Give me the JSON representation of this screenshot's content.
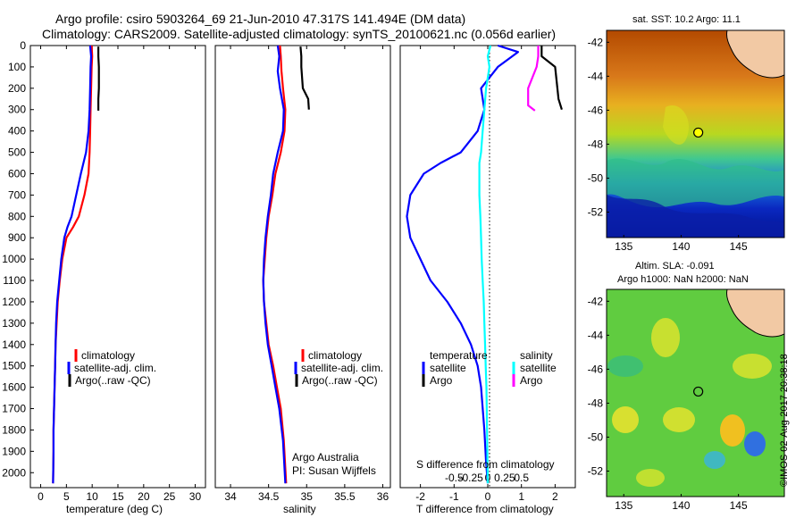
{
  "title": {
    "line1": "Argo profile: csiro 5903264_69 21-Jun-2010 47.317S 141.494E (DM data)",
    "line2": "Climatology: CARS2009. Satellite-adjusted climatology: synTS_20100621.nc (0.056d earlier)"
  },
  "colors": {
    "climatology": "#ff0000",
    "satellite": "#0000ff",
    "argo": "#000000",
    "sal_satellite": "#00ffff",
    "sal_argo": "#ff00ff"
  },
  "chart_data": [
    {
      "type": "line",
      "name": "temperature-panel",
      "xlabel": "temperature (deg C)",
      "ylabel": "",
      "xlim": [
        -2,
        32
      ],
      "ylim": [
        0,
        2070
      ],
      "y_inverted": true,
      "xticks": [
        "0",
        "5",
        "10",
        "15",
        "20",
        "25",
        "30"
      ],
      "yticks": [
        "0",
        "100",
        "200",
        "300",
        "400",
        "500",
        "600",
        "700",
        "800",
        "900",
        "1000",
        "1100",
        "1200",
        "1300",
        "1400",
        "1500",
        "1600",
        "1700",
        "1800",
        "1900",
        "2000"
      ],
      "legend": [
        "climatology",
        "satellite-adj. clim.",
        "Argo(..raw -QC)"
      ],
      "series": [
        {
          "name": "climatology",
          "color": "#ff0000",
          "x": [
            9.9,
            10.0,
            9.9,
            9.8,
            9.7,
            9.6,
            9.5,
            9.3,
            8.5,
            7.4,
            6.3,
            5.0,
            4.2,
            3.7,
            3.3,
            3.1,
            2.9,
            2.8,
            2.7,
            2.6,
            2.5,
            2.5,
            2.4
          ],
          "y": [
            0,
            50,
            100,
            200,
            300,
            400,
            500,
            600,
            700,
            800,
            850,
            900,
            1000,
            1100,
            1200,
            1300,
            1400,
            1500,
            1600,
            1700,
            1800,
            1900,
            2050
          ]
        },
        {
          "name": "satellite-adj. clim.",
          "color": "#0000ff",
          "x": [
            9.6,
            9.8,
            9.7,
            9.6,
            9.5,
            9.3,
            8.8,
            7.8,
            6.9,
            6.0,
            5.2,
            4.6,
            4.0,
            3.6,
            3.2,
            3.0,
            2.9,
            2.8,
            2.7,
            2.6,
            2.5,
            2.5,
            2.4
          ],
          "y": [
            0,
            50,
            100,
            200,
            300,
            400,
            500,
            600,
            700,
            800,
            850,
            900,
            1000,
            1100,
            1200,
            1300,
            1400,
            1500,
            1600,
            1700,
            1800,
            1900,
            2050
          ]
        },
        {
          "name": "Argo(..raw -QC)",
          "color": "#000000",
          "x": [
            11.2,
            11.2,
            11.3,
            11.3,
            11.2,
            11.2
          ],
          "y": [
            5,
            50,
            100,
            200,
            250,
            305
          ]
        }
      ]
    },
    {
      "type": "line",
      "name": "salinity-panel",
      "xlabel": "salinity",
      "ylabel": "",
      "xlim": [
        33.8,
        36.1
      ],
      "ylim": [
        0,
        2070
      ],
      "y_inverted": true,
      "xticks": [
        "34",
        "34.5",
        "35",
        "35.5",
        "36"
      ],
      "legend": [
        "climatology",
        "satellite-adj. clim.",
        "Argo(..raw -QC)"
      ],
      "annotations": [
        "Argo Australia",
        "PI: Susan Wijffels"
      ],
      "series": [
        {
          "name": "climatology",
          "color": "#ff0000",
          "x": [
            34.65,
            34.66,
            34.67,
            34.69,
            34.72,
            34.71,
            34.66,
            34.59,
            34.55,
            34.5,
            34.47,
            34.45,
            34.43,
            34.44,
            34.47,
            34.5,
            34.56,
            34.61,
            34.66,
            34.7,
            34.73
          ],
          "y": [
            0,
            50,
            120,
            200,
            300,
            400,
            500,
            600,
            700,
            800,
            900,
            1000,
            1100,
            1200,
            1300,
            1400,
            1500,
            1600,
            1700,
            1850,
            2050
          ]
        },
        {
          "name": "satellite-adj. clim.",
          "color": "#0000ff",
          "x": [
            34.62,
            34.64,
            34.62,
            34.65,
            34.7,
            34.69,
            34.62,
            34.56,
            34.53,
            34.49,
            34.46,
            34.44,
            34.43,
            34.44,
            34.46,
            34.49,
            34.54,
            34.59,
            34.64,
            34.69,
            34.72
          ],
          "y": [
            0,
            50,
            120,
            200,
            300,
            400,
            500,
            600,
            700,
            800,
            900,
            1000,
            1100,
            1200,
            1300,
            1400,
            1500,
            1600,
            1700,
            1850,
            2050
          ]
        },
        {
          "name": "Argo(..raw -QC)",
          "color": "#000000",
          "x": [
            34.92,
            34.93,
            34.93,
            34.95,
            35.02,
            35.03
          ],
          "y": [
            5,
            50,
            100,
            200,
            250,
            300
          ]
        }
      ]
    },
    {
      "type": "line",
      "name": "difference-panel",
      "xlabel": "T difference from climatology",
      "xlabel_top": "S difference from climatology",
      "xlim": [
        -2.6,
        2.6
      ],
      "ylim": [
        0,
        2070
      ],
      "y_inverted": true,
      "xticks": [
        "-2",
        "-1",
        "0",
        "1",
        "2"
      ],
      "xticks_top": [
        "-0.5",
        "-0.25",
        "0",
        "0.25",
        "0.5"
      ],
      "legend_headers": [
        "temperature",
        "salinity"
      ],
      "legend": [
        "satellite",
        "Argo",
        "satellite",
        "Argo"
      ],
      "series": [
        {
          "name": "temperature satellite",
          "color": "#0000ff",
          "x": [
            0.3,
            0.9,
            0.3,
            -0.2,
            -0.1,
            -0.3,
            -0.8,
            -1.4,
            -1.9,
            -2.3,
            -2.4,
            -2.3,
            -2.0,
            -1.7,
            -1.2,
            -0.8,
            -0.5,
            -0.3,
            -0.2,
            -0.1,
            -0.05,
            0.0
          ],
          "y": [
            0,
            30,
            100,
            200,
            300,
            400,
            500,
            550,
            600,
            700,
            800,
            900,
            1000,
            1100,
            1200,
            1300,
            1400,
            1500,
            1600,
            1800,
            1950,
            2050
          ]
        },
        {
          "name": "temperature Argo",
          "color": "#000000",
          "x": [
            1.6,
            1.6,
            2.0,
            2.1,
            2.2
          ],
          "y": [
            0,
            50,
            100,
            250,
            300
          ]
        },
        {
          "name": "salinity satellite",
          "color": "#00ffff",
          "x": [
            0.08,
            0.0,
            0.05,
            -0.05,
            -0.1,
            -0.15,
            -0.2,
            -0.25,
            -0.25,
            -0.25,
            -0.22,
            -0.2,
            -0.18,
            -0.15,
            -0.12,
            -0.1,
            -0.08,
            -0.06,
            -0.04,
            -0.02,
            0.0
          ],
          "y": [
            0,
            50,
            100,
            200,
            300,
            400,
            500,
            550,
            600,
            700,
            800,
            900,
            1000,
            1100,
            1200,
            1300,
            1400,
            1500,
            1600,
            1800,
            2050
          ]
        },
        {
          "name": "salinity Argo",
          "color": "#ff00ff",
          "x": [
            1.5,
            1.5,
            1.45,
            1.2,
            1.2,
            1.4
          ],
          "y": [
            0,
            50,
            100,
            200,
            280,
            305
          ]
        }
      ]
    },
    {
      "type": "heatmap",
      "name": "sst-map",
      "title": "sat. SST: 10.2  Argo: 11.1",
      "xlim": [
        133.5,
        149
      ],
      "ylim": [
        -53.5,
        -41.3
      ],
      "xticks": [
        "135",
        "140",
        "145"
      ],
      "yticks": [
        "-42",
        "-44",
        "-46",
        "-48",
        "-50",
        "-52"
      ],
      "marker": {
        "lon": 141.494,
        "lat": -47.317
      }
    },
    {
      "type": "heatmap",
      "name": "sla-map",
      "title_line1": "Altim. SLA: -0.091",
      "title_line2": "Argo h1000: NaN h2000: NaN",
      "xlim": [
        133.5,
        149
      ],
      "ylim": [
        -53.5,
        -41.3
      ],
      "xticks": [
        "135",
        "140",
        "145"
      ],
      "yticks": [
        "-42",
        "-44",
        "-46",
        "-48",
        "-50",
        "-52"
      ],
      "marker": {
        "lon": 141.494,
        "lat": -47.317
      }
    }
  ],
  "copyright": "©IMOS 02-Aug-2017 20:38:18"
}
